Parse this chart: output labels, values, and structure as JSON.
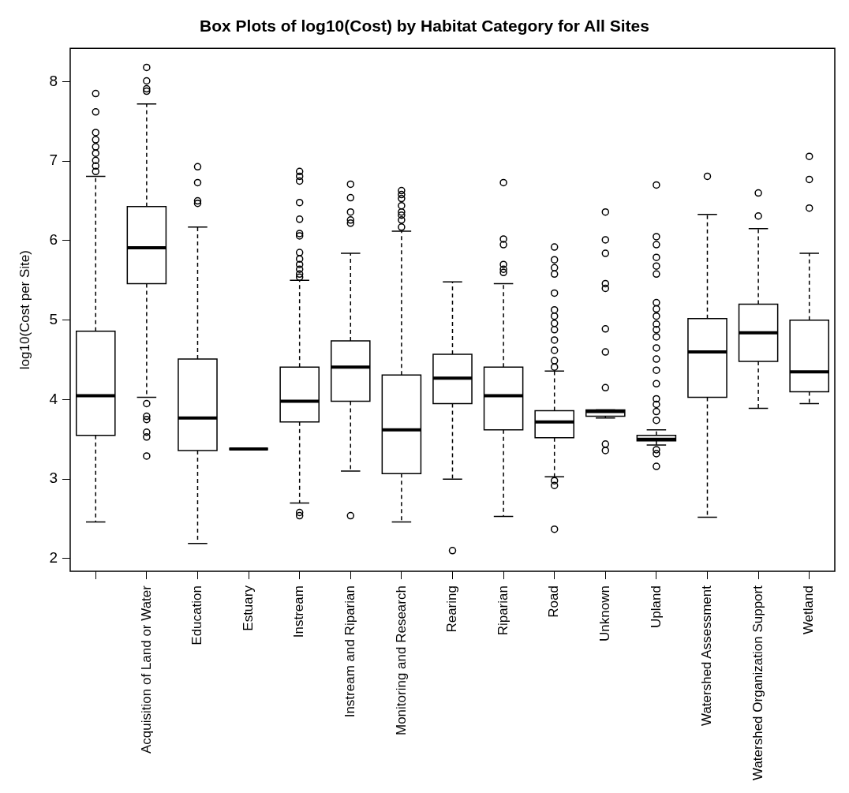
{
  "chart_data": {
    "type": "box",
    "title": "Box Plots of log10(Cost) by Habitat Category for All Sites",
    "ylabel": "log10(Cost per Site)",
    "categories": [
      null,
      "Acquisition of Land or Water",
      "Education",
      "Estuary",
      "Instream",
      "Instream and Riparian",
      "Monitoring and Research",
      "Rearing",
      "Riparian",
      "Road",
      "Unknown",
      "Upland",
      "Watershed Assessment",
      "Watershed Organization Support",
      "Wetland"
    ],
    "ylim": [
      1.84,
      8.42
    ],
    "yticks": [
      2,
      3,
      4,
      5,
      6,
      7,
      8
    ],
    "grid": false,
    "legend": false,
    "boxes": [
      {
        "low": 2.46,
        "q1": 3.55,
        "median": 4.05,
        "q3": 4.86,
        "high": 6.81,
        "outliers": [
          7.85,
          7.62,
          7.36,
          7.27,
          7.18,
          7.1,
          7.01,
          6.94,
          6.87
        ]
      },
      {
        "low": 4.03,
        "q1": 5.46,
        "median": 5.91,
        "q3": 6.43,
        "high": 7.72,
        "outliers": [
          8.18,
          8.01,
          7.91,
          7.88,
          3.95,
          3.79,
          3.75,
          3.59,
          3.53,
          3.29
        ]
      },
      {
        "low": 2.19,
        "q1": 3.36,
        "median": 3.77,
        "q3": 4.51,
        "high": 6.17,
        "outliers": [
          6.93,
          6.73,
          6.5,
          6.47
        ]
      },
      {
        "low": 3.38,
        "q1": 3.38,
        "median": 3.38,
        "q3": 3.38,
        "high": 3.38
      },
      {
        "low": 2.7,
        "q1": 3.72,
        "median": 3.98,
        "q3": 4.41,
        "high": 5.5,
        "outliers": [
          6.87,
          6.81,
          6.75,
          6.48,
          6.27,
          6.09,
          6.06,
          5.85,
          5.77,
          5.7,
          5.64,
          5.58,
          5.54,
          2.58,
          2.54
        ]
      },
      {
        "low": 3.1,
        "q1": 3.98,
        "median": 4.41,
        "q3": 4.74,
        "high": 5.84,
        "outliers": [
          6.71,
          6.54,
          6.36,
          6.26,
          6.22,
          2.54
        ]
      },
      {
        "low": 2.46,
        "q1": 3.07,
        "median": 3.62,
        "q3": 4.31,
        "high": 6.12,
        "outliers": [
          6.63,
          6.58,
          6.53,
          6.44,
          6.36,
          6.32,
          6.26,
          6.17
        ]
      },
      {
        "low": 3.0,
        "q1": 3.95,
        "median": 4.27,
        "q3": 4.57,
        "high": 5.48,
        "outliers": [
          2.1
        ]
      },
      {
        "low": 2.53,
        "q1": 3.62,
        "median": 4.05,
        "q3": 4.41,
        "high": 5.46,
        "outliers": [
          6.73,
          6.02,
          5.95,
          5.7,
          5.64,
          5.6
        ]
      },
      {
        "low": 3.03,
        "q1": 3.52,
        "median": 3.72,
        "q3": 3.86,
        "high": 4.36,
        "outliers": [
          5.92,
          5.76,
          5.66,
          5.58,
          5.34,
          5.13,
          5.05,
          4.96,
          4.88,
          4.75,
          4.62,
          4.49,
          4.41,
          2.98,
          2.92,
          2.37
        ]
      },
      {
        "low": 3.77,
        "q1": 3.79,
        "median": 3.85,
        "q3": 3.87,
        "high": 3.87,
        "outliers": [
          6.36,
          6.01,
          5.84,
          5.46,
          5.4,
          4.89,
          4.6,
          4.15,
          3.44,
          3.36
        ]
      },
      {
        "low": 3.43,
        "q1": 3.48,
        "median": 3.5,
        "q3": 3.55,
        "high": 3.62,
        "outliers": [
          6.7,
          6.05,
          5.95,
          5.79,
          5.68,
          5.58,
          5.22,
          5.14,
          5.05,
          4.95,
          4.88,
          4.79,
          4.65,
          4.51,
          4.37,
          4.2,
          4.01,
          3.94,
          3.85,
          3.74,
          3.37,
          3.32,
          3.16
        ]
      },
      {
        "low": 2.52,
        "q1": 4.03,
        "median": 4.6,
        "q3": 5.02,
        "high": 6.33,
        "outliers": [
          6.81
        ]
      },
      {
        "low": 3.89,
        "q1": 4.48,
        "median": 4.84,
        "q3": 5.2,
        "high": 6.15,
        "outliers": [
          6.6,
          6.31
        ]
      },
      {
        "low": 3.95,
        "q1": 4.1,
        "median": 4.35,
        "q3": 5.0,
        "high": 5.84,
        "outliers": [
          7.06,
          6.77,
          6.41
        ]
      }
    ]
  }
}
